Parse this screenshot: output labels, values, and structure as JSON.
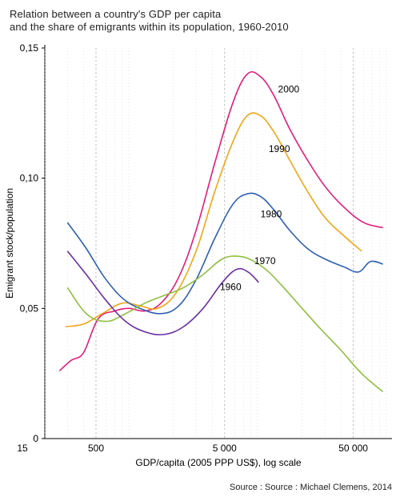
{
  "title_line1": "Relation between a country's GDP per capita",
  "title_line2": "and the share of emigrants within its population, 1960-2010",
  "source_text": "Source : Source : Michael Clemens, 2014",
  "chart": {
    "type": "line",
    "background_color": "#ffffff",
    "x": {
      "label": "GDP/capita (2005 PPP US$), log scale",
      "scale": "log",
      "corner_label": "15",
      "major_ticks": [
        500,
        5000,
        50000
      ],
      "tick_labels": [
        "500",
        "5 000",
        "50 000"
      ],
      "label_fontsize": 12
    },
    "y": {
      "label": "Emigrant stock/population",
      "scale": "linear",
      "lim": [
        0,
        0.15
      ],
      "ticks": [
        0,
        0.05,
        0.1,
        0.15
      ],
      "tick_labels": [
        "0",
        "0,05",
        "0,10",
        "0,15"
      ],
      "label_fontsize": 12
    },
    "grid_major_color": "#999999",
    "grid_minor_color": "#cccccc",
    "line_width": 1.6,
    "series": [
      {
        "name": "2000",
        "color": "#e31c79",
        "label_xy": [
          13000,
          0.133
        ],
        "points": [
          [
            260,
            0.026
          ],
          [
            320,
            0.03
          ],
          [
            400,
            0.033
          ],
          [
            520,
            0.046
          ],
          [
            700,
            0.049
          ],
          [
            900,
            0.05
          ],
          [
            1200,
            0.049
          ],
          [
            1600,
            0.052
          ],
          [
            2200,
            0.062
          ],
          [
            3000,
            0.08
          ],
          [
            4200,
            0.106
          ],
          [
            5800,
            0.129
          ],
          [
            7500,
            0.14
          ],
          [
            9500,
            0.139
          ],
          [
            12000,
            0.132
          ],
          [
            16000,
            0.119
          ],
          [
            22000,
            0.107
          ],
          [
            30000,
            0.097
          ],
          [
            42000,
            0.089
          ],
          [
            60000,
            0.083
          ],
          [
            85000,
            0.081
          ]
        ]
      },
      {
        "name": "1990",
        "color": "#f2a516",
        "label_xy": [
          11000,
          0.11
        ],
        "points": [
          [
            290,
            0.043
          ],
          [
            400,
            0.044
          ],
          [
            560,
            0.048
          ],
          [
            800,
            0.052
          ],
          [
            1100,
            0.051
          ],
          [
            1500,
            0.05
          ],
          [
            2100,
            0.056
          ],
          [
            3000,
            0.072
          ],
          [
            4200,
            0.095
          ],
          [
            5800,
            0.114
          ],
          [
            7500,
            0.124
          ],
          [
            9500,
            0.124
          ],
          [
            12000,
            0.118
          ],
          [
            16000,
            0.107
          ],
          [
            22000,
            0.095
          ],
          [
            30000,
            0.085
          ],
          [
            42000,
            0.078
          ],
          [
            58000,
            0.072
          ]
        ]
      },
      {
        "name": "1980",
        "color": "#2f5fb3",
        "label_xy": [
          9500,
          0.085
        ],
        "points": [
          [
            300,
            0.083
          ],
          [
            420,
            0.073
          ],
          [
            580,
            0.062
          ],
          [
            800,
            0.054
          ],
          [
            1100,
            0.05
          ],
          [
            1600,
            0.048
          ],
          [
            2200,
            0.051
          ],
          [
            3000,
            0.061
          ],
          [
            4200,
            0.077
          ],
          [
            5800,
            0.09
          ],
          [
            7500,
            0.094
          ],
          [
            9500,
            0.093
          ],
          [
            12000,
            0.088
          ],
          [
            16000,
            0.08
          ],
          [
            22000,
            0.073
          ],
          [
            30000,
            0.069
          ],
          [
            42000,
            0.066
          ],
          [
            55000,
            0.064
          ],
          [
            68000,
            0.068
          ],
          [
            85000,
            0.067
          ]
        ]
      },
      {
        "name": "1970",
        "color": "#8fbf3f",
        "label_xy": [
          8500,
          0.067
        ],
        "points": [
          [
            300,
            0.058
          ],
          [
            420,
            0.048
          ],
          [
            600,
            0.045
          ],
          [
            850,
            0.048
          ],
          [
            1200,
            0.052
          ],
          [
            1700,
            0.055
          ],
          [
            2400,
            0.058
          ],
          [
            3400,
            0.063
          ],
          [
            4800,
            0.069
          ],
          [
            6500,
            0.07
          ],
          [
            8500,
            0.068
          ],
          [
            11000,
            0.064
          ],
          [
            15000,
            0.057
          ],
          [
            20000,
            0.05
          ],
          [
            28000,
            0.042
          ],
          [
            40000,
            0.034
          ],
          [
            58000,
            0.025
          ],
          [
            85000,
            0.018
          ]
        ]
      },
      {
        "name": "1960",
        "color": "#6a2fa3",
        "label_xy": [
          4600,
          0.057
        ],
        "points": [
          [
            300,
            0.072
          ],
          [
            420,
            0.063
          ],
          [
            600,
            0.053
          ],
          [
            850,
            0.045
          ],
          [
            1200,
            0.041
          ],
          [
            1700,
            0.04
          ],
          [
            2400,
            0.043
          ],
          [
            3400,
            0.05
          ],
          [
            4800,
            0.06
          ],
          [
            6200,
            0.065
          ],
          [
            7600,
            0.064
          ],
          [
            9200,
            0.06
          ]
        ]
      }
    ]
  }
}
